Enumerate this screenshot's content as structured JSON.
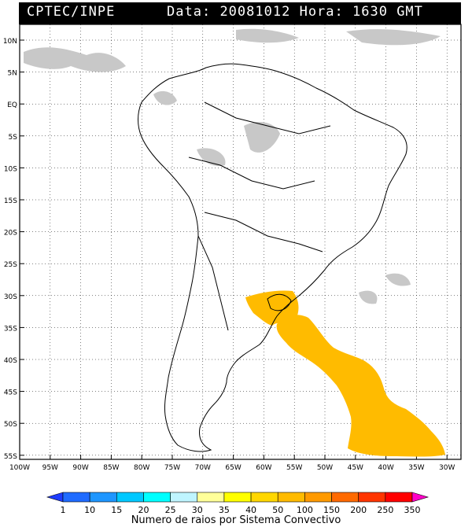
{
  "header": {
    "org": "CPTEC/INPE",
    "date_label": "Data:",
    "date": "20081012",
    "time_label": "Hora:",
    "time": "1630 GMT"
  },
  "map": {
    "lat_labels": [
      "10N",
      "5N",
      "EQ",
      "5S",
      "10S",
      "15S",
      "20S",
      "25S",
      "30S",
      "35S",
      "40S",
      "45S",
      "50S",
      "55S"
    ],
    "lon_labels": [
      "100W",
      "95W",
      "90W",
      "85W",
      "80W",
      "75W",
      "70W",
      "65W",
      "60W",
      "55W",
      "50W",
      "45W",
      "40W",
      "35W",
      "30W"
    ],
    "colors": {
      "land_border": "#000000",
      "cloud": "#c8c8c8",
      "lightning": "#ffbb00",
      "grid": "#000000"
    }
  },
  "colorbar": {
    "ticks": [
      "1",
      "10",
      "15",
      "20",
      "25",
      "30",
      "35",
      "40",
      "50",
      "100",
      "150",
      "200",
      "250",
      "350"
    ],
    "colors": [
      "#1e3cff",
      "#1f6bff",
      "#1e96ff",
      "#00c8ff",
      "#00ffff",
      "#bff5ff",
      "#ffff99",
      "#ffff00",
      "#ffd700",
      "#ffbb00",
      "#ff9a00",
      "#ff6a00",
      "#ff3500",
      "#ff0000",
      "#ff00c8"
    ],
    "title": "Numero de raios por Sistema Convectivo"
  }
}
